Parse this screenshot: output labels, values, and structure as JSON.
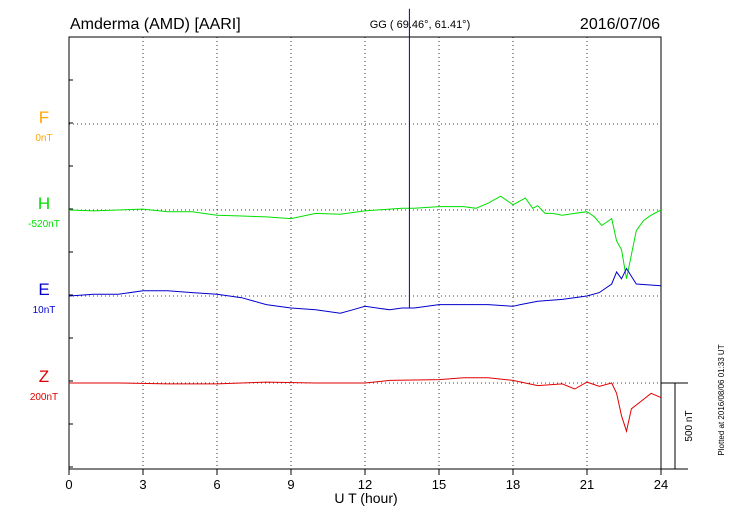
{
  "chart_data": {
    "type": "line",
    "title_left": "Amderma (AMD)  [AARI]",
    "title_center": "GG ( 69.46°,  61.41°)",
    "title_right": "2016/07/06",
    "xlabel": "U T (hour)",
    "xlim": [
      0,
      24
    ],
    "x_ticks": [
      "0",
      "3",
      "6",
      "9",
      "12",
      "15",
      "18",
      "21",
      "24"
    ],
    "grid": true,
    "scale_bar": {
      "label": "500 nT",
      "value": 500
    },
    "side_note": "Plotted at 2016/08/06 01:33 UT",
    "series": [
      {
        "name": "F",
        "baseline": "0nT",
        "color": "#ffa500",
        "x": [],
        "y": []
      },
      {
        "name": "H",
        "baseline": "-520nT",
        "color": "#00e000",
        "x": [
          0,
          1,
          2,
          3,
          4,
          5,
          6,
          7,
          8,
          9,
          10,
          11,
          12,
          13,
          13.5,
          14,
          15,
          16,
          16.5,
          17,
          17.5,
          18,
          18.5,
          18.8,
          19,
          19.3,
          19.6,
          20,
          20.5,
          21,
          21.3,
          21.6,
          22,
          22.2,
          22.4,
          22.6,
          22.8,
          23,
          23.3,
          23.6,
          24
        ],
        "y": [
          -520,
          -525,
          -520,
          -515,
          -530,
          -530,
          -550,
          -555,
          -560,
          -570,
          -540,
          -545,
          -525,
          -515,
          -510,
          -510,
          -500,
          -500,
          -510,
          -480,
          -440,
          -490,
          -450,
          -510,
          -495,
          -540,
          -540,
          -550,
          -540,
          -530,
          -560,
          -610,
          -570,
          -700,
          -750,
          -920,
          -780,
          -640,
          -580,
          -550,
          -520
        ]
      },
      {
        "name": "E",
        "baseline": "10nT",
        "color": "#0000cc",
        "x": [
          0,
          1,
          2,
          3,
          4,
          5,
          6,
          7,
          8,
          9,
          10,
          11,
          11.5,
          12,
          13,
          13.5,
          13.8,
          13.8,
          13.8,
          13.82,
          14,
          15,
          16,
          17,
          18,
          18.3,
          19,
          20,
          21,
          21.5,
          22,
          22.2,
          22.4,
          22.6,
          23,
          24
        ],
        "y": [
          10,
          20,
          20,
          40,
          40,
          30,
          20,
          0,
          -40,
          -60,
          -70,
          -90,
          -70,
          -50,
          -70,
          -60,
          -60,
          1680,
          -60,
          -60,
          -60,
          -40,
          -40,
          -40,
          -50,
          -40,
          -20,
          -10,
          10,
          30,
          80,
          150,
          110,
          170,
          80,
          70
        ]
      },
      {
        "name": "Z",
        "baseline": "200nT",
        "color": "#e00000",
        "x": [
          0,
          2,
          4,
          6,
          8,
          10,
          12,
          13,
          15,
          16,
          17,
          18,
          19,
          20,
          20.5,
          21,
          21.5,
          22,
          22.2,
          22.4,
          22.6,
          22.8,
          23.2,
          23.6,
          24
        ],
        "y": [
          200,
          200,
          195,
          195,
          205,
          200,
          200,
          215,
          220,
          230,
          230,
          215,
          185,
          195,
          165,
          205,
          180,
          200,
          140,
          10,
          -80,
          50,
          95,
          140,
          115
        ]
      }
    ]
  }
}
